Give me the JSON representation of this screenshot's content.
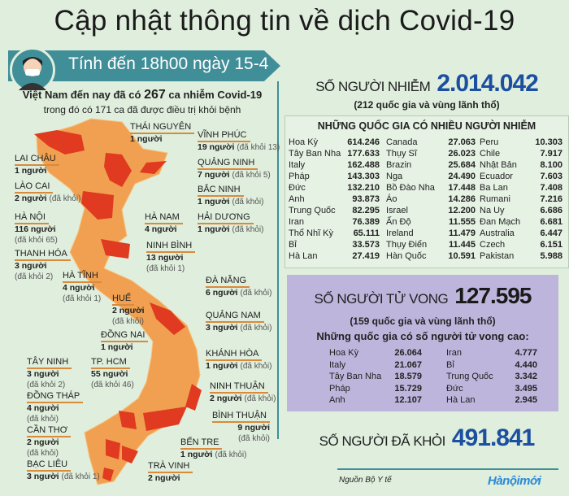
{
  "title": "Cập nhật thông tin về dịch Covid-19",
  "banner": "Tính đến 18h00 ngày 15-4",
  "intro": {
    "pre": "Việt Nam đến nay đã có ",
    "num": "267",
    "post": " ca nhiễm Covid-19",
    "line2": "trong đó có 171 ca đã được điều trị khỏi bệnh"
  },
  "infected": {
    "label": "SỐ NGƯỜI NHIỄM",
    "value": "2.014.042",
    "sub": "(212 quốc gia và vùng lãnh thổ)",
    "heading": "NHỮNG QUỐC GIA CÓ NHIỀU NGƯỜI NHIỄM",
    "columns": [
      [
        [
          "Hoa Kỳ",
          "614.246"
        ],
        [
          "Tây Ban Nha",
          "177.633"
        ],
        [
          "Italy",
          "162.488"
        ],
        [
          "Pháp",
          "143.303"
        ],
        [
          "Đức",
          "132.210"
        ],
        [
          "Anh",
          "93.873"
        ],
        [
          "Trung Quốc",
          "82.295"
        ],
        [
          "Iran",
          "76.389"
        ],
        [
          "Thổ Nhĩ Kỳ",
          "65.111"
        ],
        [
          "Bỉ",
          "33.573"
        ],
        [
          "Hà Lan",
          "27.419"
        ]
      ],
      [
        [
          "Canada",
          "27.063"
        ],
        [
          "Thụy Sĩ",
          "26.023"
        ],
        [
          "Brazin",
          "25.684"
        ],
        [
          "Nga",
          "24.490"
        ],
        [
          "Bồ Đào Nha",
          "17.448"
        ],
        [
          "Áo",
          "14.286"
        ],
        [
          "Israel",
          "12.200"
        ],
        [
          "Ấn Độ",
          "11.555"
        ],
        [
          "Ireland",
          "11.479"
        ],
        [
          "Thụy Điển",
          "11.445"
        ],
        [
          "Hàn Quốc",
          "10.591"
        ]
      ],
      [
        [
          "Peru",
          "10.303"
        ],
        [
          "Chile",
          "7.917"
        ],
        [
          "Nhật Bản",
          "8.100"
        ],
        [
          "Ecuador",
          "7.603"
        ],
        [
          "Ba Lan",
          "7.408"
        ],
        [
          "Rumani",
          "7.216"
        ],
        [
          "Na Uy",
          "6.686"
        ],
        [
          "Đan Mạch",
          "6.681"
        ],
        [
          "Australia",
          "6.447"
        ],
        [
          "Czech",
          "6.151"
        ],
        [
          "Pakistan",
          "5.988"
        ]
      ]
    ]
  },
  "deaths": {
    "label": "SỐ NGƯỜI TỬ VONG",
    "value": "127.595",
    "sub": "(159 quốc gia và vùng lãnh thổ)",
    "heading": "Những quốc gia có số người tử vong cao:",
    "columns": [
      [
        [
          "Hoa Kỳ",
          "26.064"
        ],
        [
          "Italy",
          "21.067"
        ],
        [
          "Tây Ban Nha",
          "18.579"
        ],
        [
          "Pháp",
          "15.729"
        ],
        [
          "Anh",
          "12.107"
        ]
      ],
      [
        [
          "Iran",
          "4.777"
        ],
        [
          "Bỉ",
          "4.440"
        ],
        [
          "Trung Quốc",
          "3.342"
        ],
        [
          "Đức",
          "3.495"
        ],
        [
          "Hà Lan",
          "2.945"
        ]
      ]
    ]
  },
  "recovered": {
    "label": "SỐ NGƯỜI ĐÃ KHỎI",
    "value": "491.841"
  },
  "source": "Nguồn Bộ Y tế",
  "logo": "Hànộimới",
  "colors": {
    "teal": "#3f8e98",
    "infected_blue": "#1c4fa0",
    "province_cases": "#e03a20",
    "province_base": "#f0a050",
    "death_box": "#bdb5dc"
  },
  "provinces": [
    {
      "name": "THÁI NGUYÊN",
      "cases": "1 người",
      "recovered": ""
    },
    {
      "name": "VĨNH PHÚC",
      "cases": "19 người",
      "recovered": "(đã khỏi 13)"
    },
    {
      "name": "LAI CHÂU",
      "cases": "1 người",
      "recovered": ""
    },
    {
      "name": "QUẢNG NINH",
      "cases": "7 người",
      "recovered": "(đã khỏi 5)"
    },
    {
      "name": "LÀO CAI",
      "cases": "2 người",
      "recovered": "(đã khỏi)"
    },
    {
      "name": "BẮC NINH",
      "cases": "1 người",
      "recovered": "(đã khỏi)"
    },
    {
      "name": "HÀ NỘI",
      "cases": "116 người",
      "recovered": "(đã khỏi 65)"
    },
    {
      "name": "HÀ NAM",
      "cases": "4 người",
      "recovered": ""
    },
    {
      "name": "HẢI DƯƠNG",
      "cases": "1 người",
      "recovered": "(đã khỏi)"
    },
    {
      "name": "NINH BÌNH",
      "cases": "13 người",
      "recovered": "(đã khỏi 1)"
    },
    {
      "name": "THANH HÓA",
      "cases": "3 người",
      "recovered": "(đã khỏi 2)"
    },
    {
      "name": "HÀ TĨNH",
      "cases": "4 người",
      "recovered": "(đã khỏi 1)"
    },
    {
      "name": "ĐÀ NẴNG",
      "cases": "6 người",
      "recovered": "(đã khỏi)"
    },
    {
      "name": "HUẾ",
      "cases": "2 người",
      "recovered": "(đã khỏi)"
    },
    {
      "name": "QUẢNG NAM",
      "cases": "3 người",
      "recovered": "(đã khỏi)"
    },
    {
      "name": "ĐỒNG NAI",
      "cases": "1 người",
      "recovered": ""
    },
    {
      "name": "KHÁNH HÒA",
      "cases": "1 người",
      "recovered": "(đã khỏi)"
    },
    {
      "name": "TÂY NINH",
      "cases": "3 người",
      "recovered": "(đã khỏi 2)"
    },
    {
      "name": "TP. HCM",
      "cases": "55 người",
      "recovered": "(đã khỏi 46)"
    },
    {
      "name": "NINH THUẬN",
      "cases": "2 người",
      "recovered": "(đã khỏi)"
    },
    {
      "name": "ĐỒNG THÁP",
      "cases": "4 người",
      "recovered": "(đã khỏi)"
    },
    {
      "name": "BÌNH THUẬN",
      "cases": "9 người",
      "recovered": "(đã khỏi)"
    },
    {
      "name": "CẦN THƠ",
      "cases": "2 người",
      "recovered": "(đã khỏi)"
    },
    {
      "name": "BẾN TRE",
      "cases": "1 người",
      "recovered": "(đã khỏi)"
    },
    {
      "name": "BẠC LIÊU",
      "cases": "3 người",
      "recovered": "(đã khỏi 1)"
    },
    {
      "name": "TRÀ VINH",
      "cases": "2 người",
      "recovered": ""
    }
  ]
}
